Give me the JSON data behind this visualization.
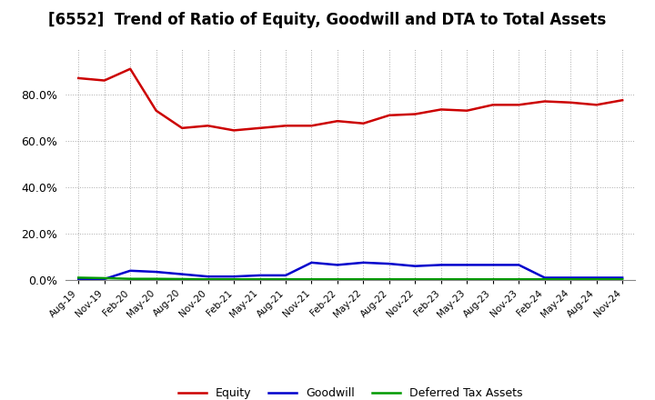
{
  "title": "[6552]  Trend of Ratio of Equity, Goodwill and DTA to Total Assets",
  "x_labels": [
    "Aug-19",
    "Nov-19",
    "Feb-20",
    "May-20",
    "Aug-20",
    "Nov-20",
    "Feb-21",
    "May-21",
    "Aug-21",
    "Nov-21",
    "Feb-22",
    "May-22",
    "Aug-22",
    "Nov-22",
    "Feb-23",
    "May-23",
    "Aug-23",
    "Nov-23",
    "Feb-24",
    "May-24",
    "Aug-24",
    "Nov-24"
  ],
  "equity": [
    87.0,
    86.0,
    91.0,
    73.0,
    65.5,
    66.5,
    64.5,
    65.5,
    66.5,
    66.5,
    68.5,
    67.5,
    71.0,
    71.5,
    73.5,
    73.0,
    75.5,
    75.5,
    77.0,
    76.5,
    75.5,
    77.5
  ],
  "goodwill": [
    0.5,
    0.4,
    4.0,
    3.5,
    2.5,
    1.5,
    1.5,
    2.0,
    2.0,
    7.5,
    6.5,
    7.5,
    7.0,
    6.0,
    6.5,
    6.5,
    6.5,
    6.5,
    1.0,
    1.0,
    1.0,
    1.0
  ],
  "dta": [
    1.0,
    0.8,
    0.5,
    0.5,
    0.4,
    0.3,
    0.3,
    0.3,
    0.3,
    0.3,
    0.3,
    0.3,
    0.3,
    0.3,
    0.3,
    0.3,
    0.3,
    0.3,
    0.3,
    0.3,
    0.3,
    0.3
  ],
  "equity_color": "#cc0000",
  "goodwill_color": "#0000cc",
  "dta_color": "#009900",
  "ylim": [
    0,
    100
  ],
  "yticks": [
    0,
    20,
    40,
    60,
    80
  ],
  "ytick_labels": [
    "0.0%",
    "20.0%",
    "40.0%",
    "60.0%",
    "80.0%"
  ],
  "background_color": "#ffffff",
  "grid_color": "#aaaaaa",
  "title_fontsize": 12
}
